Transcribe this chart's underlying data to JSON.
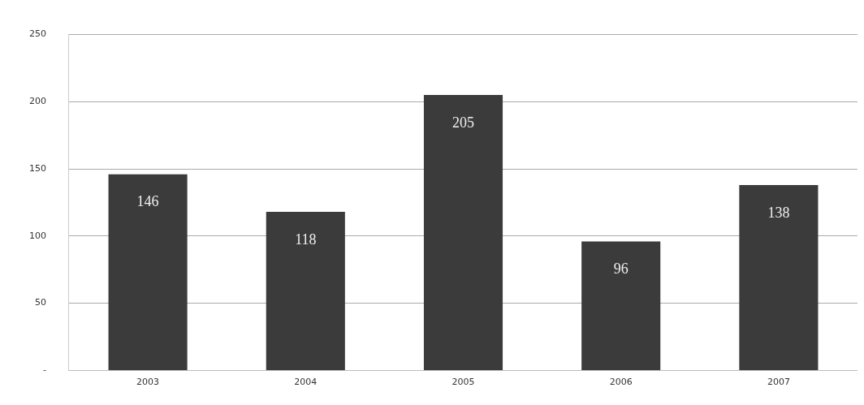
{
  "chart_data": {
    "type": "bar",
    "categories": [
      "2003",
      "2004",
      "2005",
      "2006",
      "2007"
    ],
    "values": [
      146,
      118,
      205,
      96,
      138
    ],
    "color": "#3b3b3b",
    "ylim": [
      0,
      250
    ],
    "yticks": [
      {
        "value": 0,
        "label": "-"
      },
      50,
      100,
      150,
      200,
      250
    ],
    "grid": "y",
    "data_labels": true
  }
}
